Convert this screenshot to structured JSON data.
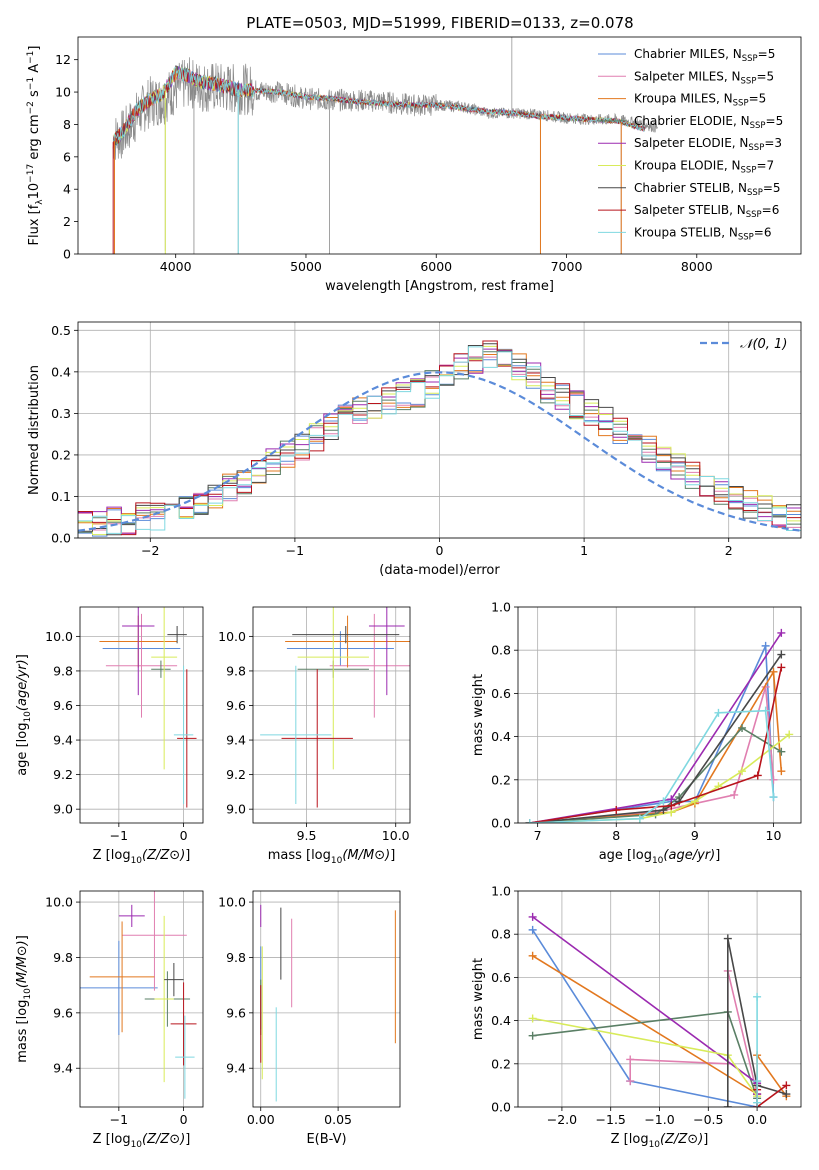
{
  "figure": {
    "title": "PLATE=0503, MJD=51999, FIBERID=0133, z=0.078"
  },
  "palette": {
    "Chabrier MILES": "#5b8bd9",
    "Salpeter MILES": "#e07fb0",
    "Kroupa MILES": "#e2781f",
    "Chabrier ELODIE": "#5a7f65",
    "Salpeter ELODIE": "#9b2ab0",
    "Kroupa ELODIE": "#d8eb5a",
    "Chabrier STELIB": "#484848",
    "Salpeter STELIB": "#b8141c",
    "Kroupa STELIB": "#7fd8e0",
    "observed": "#8a8a8a",
    "normal_curve": "#5b8bd9"
  },
  "chart_data": [
    {
      "id": "spectrum",
      "type": "line",
      "xlabel": "wavelength [Angstrom, rest frame]",
      "ylabel": "Flux [f_λ 10^-17 erg cm^-2 s^-1 A^-1]",
      "xlim": [
        3250,
        8800
      ],
      "ylim": [
        0,
        13.4
      ],
      "xticks": [
        4000,
        5000,
        6000,
        7000,
        8000
      ],
      "yticks": [
        0,
        2,
        4,
        6,
        8,
        10,
        12
      ],
      "grid": false,
      "legend_position": "right",
      "observed": {
        "name": "observed",
        "x": [
          3520,
          3600,
          3700,
          3800,
          3900,
          4000,
          4100,
          4200,
          4300,
          4400,
          4500,
          4600,
          4800,
          5000,
          5200,
          5400,
          5600,
          5800,
          6000,
          6200,
          6400,
          6600,
          6800,
          7000,
          7200,
          7400,
          7600,
          7700
        ],
        "y": [
          7.1,
          7.4,
          8.5,
          9.4,
          9.5,
          10.2,
          10.6,
          10.3,
          10.3,
          10.2,
          10.2,
          10.1,
          10.0,
          9.6,
          9.5,
          9.5,
          9.4,
          9.2,
          9.2,
          9.1,
          8.7,
          8.7,
          8.6,
          8.4,
          8.3,
          8.3,
          8.0,
          7.8
        ]
      },
      "model_spectrum": {
        "x": [
          3520,
          3600,
          3700,
          3800,
          3900,
          4000,
          4100,
          4200,
          4300,
          4400,
          4500,
          4600,
          4800,
          5000,
          5200,
          5400,
          5600,
          5800,
          6000,
          6200,
          6400,
          6600,
          6800,
          7000,
          7200,
          7400,
          7600
        ],
        "y": [
          6.9,
          7.6,
          8.9,
          9.5,
          9.9,
          11.2,
          11.0,
          10.6,
          10.5,
          10.3,
          10.1,
          10.1,
          10.0,
          9.7,
          9.6,
          9.4,
          9.3,
          9.2,
          9.2,
          9.0,
          8.8,
          8.7,
          8.5,
          8.4,
          8.3,
          8.2,
          7.7
        ]
      },
      "series": [
        {
          "name": "Chabrier MILES",
          "n_ssp": "5",
          "label_text": "Chabrier MILES, N",
          "label_sub": "SSP",
          "label_end": "=5"
        },
        {
          "name": "Salpeter MILES",
          "n_ssp": "5",
          "label_text": "Salpeter MILES, N",
          "label_sub": "SSP",
          "label_end": "=5"
        },
        {
          "name": "Kroupa MILES",
          "n_ssp": "5",
          "label_text": "Kroupa MILES, N",
          "label_sub": "SSP",
          "label_end": "=5"
        },
        {
          "name": "Chabrier ELODIE",
          "n_ssp": "5",
          "label_text": "Chabrier ELODIE, N",
          "label_sub": "SSP",
          "label_end": "=5"
        },
        {
          "name": "Salpeter ELODIE",
          "n_ssp": "3",
          "label_text": "Salpeter ELODIE, N",
          "label_sub": "SSP",
          "label_end": "=3"
        },
        {
          "name": "Kroupa ELODIE",
          "n_ssp": "7",
          "label_text": "Kroupa ELODIE, N",
          "label_sub": "SSP",
          "label_end": "=7"
        },
        {
          "name": "Chabrier STELIB",
          "n_ssp": "5",
          "label_text": "Chabrier STELIB, N",
          "label_sub": "SSP",
          "label_end": "=5"
        },
        {
          "name": "Salpeter STELIB",
          "n_ssp": "6",
          "label_text": "Salpeter STELIB, N",
          "label_sub": "SSP",
          "label_end": "=6"
        },
        {
          "name": "Kroupa STELIB",
          "n_ssp": "6",
          "label_text": "Kroupa STELIB, N",
          "label_sub": "SSP",
          "label_end": "=6"
        }
      ]
    },
    {
      "id": "residuals",
      "type": "line",
      "xlabel": "(data-model)/error",
      "ylabel": "Normed distribution",
      "xlim": [
        -2.5,
        2.5
      ],
      "ylim": [
        0,
        0.52
      ],
      "xticks": [
        -2,
        -1,
        0,
        1,
        2
      ],
      "yticks": [
        0.0,
        0.1,
        0.2,
        0.3,
        0.4,
        0.5
      ],
      "grid": true,
      "legend_position": "top-right",
      "legend_label": "𝒩(0, 1)",
      "bin_width": 0.1,
      "histogram_envelope": [
        0.03,
        0.03,
        0.04,
        0.04,
        0.05,
        0.05,
        0.06,
        0.07,
        0.09,
        0.1,
        0.12,
        0.14,
        0.16,
        0.18,
        0.2,
        0.22,
        0.24,
        0.27,
        0.29,
        0.31,
        0.32,
        0.33,
        0.34,
        0.35,
        0.37,
        0.39,
        0.41,
        0.43,
        0.44,
        0.43,
        0.41,
        0.39,
        0.36,
        0.34,
        0.32,
        0.3,
        0.28,
        0.26,
        0.24,
        0.21,
        0.19,
        0.17,
        0.15,
        0.13,
        0.11,
        0.09,
        0.08,
        0.07,
        0.06,
        0.05
      ]
    },
    {
      "id": "age_vs_Z",
      "type": "scatter",
      "xlabel": "Z [log10(Z/Z⊙)]",
      "ylabel": "age  [log10(age/yr)]",
      "xlim": [
        -1.6,
        0.3
      ],
      "ylim": [
        8.92,
        10.17
      ],
      "xticks": [
        -1,
        0
      ],
      "yticks": [
        9.0,
        9.2,
        9.4,
        9.6,
        9.8,
        10.0
      ],
      "grid": true,
      "points": [
        {
          "series": "Chabrier MILES",
          "x": -0.65,
          "xerr": 0.6,
          "y": 9.93,
          "yerr": 0.1
        },
        {
          "series": "Salpeter MILES",
          "x": -0.65,
          "xerr": 0.55,
          "y": 9.83,
          "yerr": 0.3
        },
        {
          "series": "Kroupa MILES",
          "x": -0.7,
          "xerr": 0.6,
          "y": 9.97,
          "yerr": 0.15
        },
        {
          "series": "Chabrier ELODIE",
          "x": -0.35,
          "xerr": 0.15,
          "y": 9.81,
          "yerr": 0.05
        },
        {
          "series": "Salpeter ELODIE",
          "x": -0.7,
          "xerr": 0.25,
          "y": 10.06,
          "yerr": 0.4
        },
        {
          "series": "Kroupa ELODIE",
          "x": -0.3,
          "xerr": 0.2,
          "y": 9.88,
          "yerr": 0.65
        },
        {
          "series": "Chabrier STELIB",
          "x": -0.1,
          "xerr": 0.15,
          "y": 10.01,
          "yerr": 0.05
        },
        {
          "series": "Salpeter STELIB",
          "x": 0.05,
          "xerr": 0.15,
          "y": 9.41,
          "yerr": 0.4
        },
        {
          "series": "Kroupa STELIB",
          "x": 0.0,
          "xerr": 0.15,
          "y": 9.43,
          "yerr": 0.4
        }
      ]
    },
    {
      "id": "age_vs_mass",
      "type": "scatter",
      "xlabel": "mass [log10(M/M⊙)]",
      "ylabel": "",
      "xlim": [
        9.2,
        10.08
      ],
      "ylim": [
        8.92,
        10.17
      ],
      "xticks": [
        9.5,
        10.0
      ],
      "yticks": [
        9.0,
        9.2,
        9.4,
        9.6,
        9.8,
        10.0
      ],
      "grid": true,
      "points": [
        {
          "series": "Chabrier MILES",
          "x": 9.69,
          "xerr": 0.3,
          "y": 9.93,
          "yerr": 0.1
        },
        {
          "series": "Salpeter MILES",
          "x": 9.88,
          "xerr": 0.25,
          "y": 9.83,
          "yerr": 0.3
        },
        {
          "series": "Kroupa MILES",
          "x": 9.73,
          "xerr": 0.35,
          "y": 9.97,
          "yerr": 0.15
        },
        {
          "series": "Chabrier ELODIE",
          "x": 9.65,
          "xerr": 0.2,
          "y": 9.81,
          "yerr": 0.05
        },
        {
          "series": "Salpeter ELODIE",
          "x": 9.95,
          "xerr": 0.1,
          "y": 10.06,
          "yerr": 0.4
        },
        {
          "series": "Kroupa ELODIE",
          "x": 9.65,
          "xerr": 0.2,
          "y": 9.88,
          "yerr": 0.65
        },
        {
          "series": "Chabrier STELIB",
          "x": 9.72,
          "xerr": 0.3,
          "y": 10.01,
          "yerr": 0.05
        },
        {
          "series": "Salpeter STELIB",
          "x": 9.56,
          "xerr": 0.2,
          "y": 9.41,
          "yerr": 0.4
        },
        {
          "series": "Kroupa STELIB",
          "x": 9.44,
          "xerr": 0.2,
          "y": 9.43,
          "yerr": 0.4
        }
      ]
    },
    {
      "id": "weight_vs_age",
      "type": "line",
      "xlabel": "age  [log10(age/yr)]",
      "ylabel": "mass weight",
      "xlim": [
        6.75,
        10.35
      ],
      "ylim": [
        0,
        1.0
      ],
      "xticks": [
        7,
        8,
        9,
        10
      ],
      "yticks": [
        0.0,
        0.2,
        0.4,
        0.6,
        0.8,
        1.0
      ],
      "grid": true,
      "series": [
        {
          "name": "Chabrier MILES",
          "x": [
            6.9,
            8.7,
            9.0,
            9.9,
            10.0
          ],
          "y": [
            0.0,
            0.1,
            0.1,
            0.82,
            0.12
          ]
        },
        {
          "name": "Salpeter MILES",
          "x": [
            6.9,
            8.5,
            9.5,
            9.9,
            10.0
          ],
          "y": [
            0.0,
            0.05,
            0.13,
            0.63,
            0.2
          ]
        },
        {
          "name": "Kroupa MILES",
          "x": [
            6.9,
            8.7,
            9.0,
            10.0,
            10.1
          ],
          "y": [
            0.0,
            0.05,
            0.09,
            0.7,
            0.24
          ]
        },
        {
          "name": "Chabrier ELODIE",
          "x": [
            6.9,
            8.5,
            8.8,
            9.6,
            10.1
          ],
          "y": [
            0.0,
            0.04,
            0.12,
            0.44,
            0.33
          ]
        },
        {
          "name": "Salpeter ELODIE",
          "x": [
            6.9,
            8.7,
            10.1
          ],
          "y": [
            0.0,
            0.11,
            0.88
          ]
        },
        {
          "name": "Kroupa ELODIE",
          "x": [
            6.9,
            8.3,
            8.7,
            9.0,
            9.3,
            9.6,
            10.2
          ],
          "y": [
            0.0,
            0.02,
            0.05,
            0.1,
            0.17,
            0.24,
            0.41
          ]
        },
        {
          "name": "Chabrier STELIB",
          "x": [
            6.9,
            8.6,
            8.8,
            10.1
          ],
          "y": [
            0.0,
            0.06,
            0.1,
            0.78
          ]
        },
        {
          "name": "Salpeter STELIB",
          "x": [
            6.9,
            8.0,
            8.7,
            9.8,
            10.1
          ],
          "y": [
            0.0,
            0.06,
            0.08,
            0.22,
            0.72
          ]
        },
        {
          "name": "Kroupa STELIB",
          "x": [
            6.9,
            8.3,
            8.6,
            9.3,
            9.9,
            10.0
          ],
          "y": [
            0.0,
            0.02,
            0.1,
            0.51,
            0.52,
            0.12
          ]
        }
      ]
    },
    {
      "id": "mass_vs_Z",
      "type": "scatter",
      "xlabel": "Z [log10(Z/Z⊙)]",
      "ylabel": "mass [log10(M/M⊙)]",
      "xlim": [
        -1.6,
        0.3
      ],
      "ylim": [
        9.26,
        10.04
      ],
      "xticks": [
        -1,
        0
      ],
      "yticks": [
        9.4,
        9.6,
        9.8,
        10.0
      ],
      "grid": true,
      "points": [
        {
          "series": "Chabrier MILES",
          "x": -1.0,
          "xerr": 0.6,
          "y": 9.69,
          "yerr": 0.17
        },
        {
          "series": "Salpeter MILES",
          "x": -0.45,
          "xerr": 0.5,
          "y": 9.88,
          "yerr": 0.2
        },
        {
          "series": "Kroupa MILES",
          "x": -0.95,
          "xerr": 0.5,
          "y": 9.73,
          "yerr": 0.2
        },
        {
          "series": "Chabrier ELODIE",
          "x": -0.25,
          "xerr": 0.35,
          "y": 9.65,
          "yerr": 0.1
        },
        {
          "series": "Salpeter ELODIE",
          "x": -0.8,
          "xerr": 0.2,
          "y": 9.95,
          "yerr": 0.04
        },
        {
          "series": "Kroupa ELODIE",
          "x": -0.3,
          "xerr": 0.15,
          "y": 9.65,
          "yerr": 0.3
        },
        {
          "series": "Chabrier STELIB",
          "x": -0.15,
          "xerr": 0.15,
          "y": 9.72,
          "yerr": 0.06
        },
        {
          "series": "Salpeter STELIB",
          "x": 0.0,
          "xerr": 0.2,
          "y": 9.56,
          "yerr": 0.15
        },
        {
          "series": "Kroupa STELIB",
          "x": 0.02,
          "xerr": 0.15,
          "y": 9.44,
          "yerr": 0.15
        }
      ]
    },
    {
      "id": "mass_vs_ebv",
      "type": "scatter",
      "xlabel": "E(B-V)",
      "ylabel": "",
      "xlim": [
        -0.005,
        0.09
      ],
      "ylim": [
        9.26,
        10.04
      ],
      "xticks": [
        0.0,
        0.05
      ],
      "yticks": [
        9.4,
        9.6,
        9.8,
        10.0
      ],
      "grid": true,
      "points": [
        {
          "series": "Chabrier MILES",
          "x": 0.0,
          "xerr": 0.0,
          "y": 9.69,
          "yerr": 0.15
        },
        {
          "series": "Salpeter MILES",
          "x": 0.02,
          "xerr": 0.0,
          "y": 9.78,
          "yerr": 0.16
        },
        {
          "series": "Kroupa MILES",
          "x": 0.087,
          "xerr": 0.0,
          "y": 9.73,
          "yerr": 0.24
        },
        {
          "series": "Chabrier ELODIE",
          "x": 0.0,
          "xerr": 0.0,
          "y": 9.62,
          "yerr": 0.1
        },
        {
          "series": "Salpeter ELODIE",
          "x": 0.0,
          "xerr": 0.0,
          "y": 9.95,
          "yerr": 0.04
        },
        {
          "series": "Kroupa ELODIE",
          "x": 0.001,
          "xerr": 0.0,
          "y": 9.6,
          "yerr": 0.24
        },
        {
          "series": "Chabrier STELIB",
          "x": 0.013,
          "xerr": 0.0,
          "y": 9.85,
          "yerr": 0.13
        },
        {
          "series": "Salpeter STELIB",
          "x": 0.0,
          "xerr": 0.0,
          "y": 9.56,
          "yerr": 0.14
        },
        {
          "series": "Kroupa STELIB",
          "x": 0.01,
          "xerr": 0.0,
          "y": 9.45,
          "yerr": 0.17
        }
      ]
    },
    {
      "id": "weight_vs_Z",
      "type": "line",
      "xlabel": "Z [log10(Z/Z⊙)]",
      "ylabel": "mass weight",
      "xlim": [
        -2.45,
        0.45
      ],
      "ylim": [
        0,
        1.0
      ],
      "xticks": [
        -2.0,
        -1.5,
        -1.0,
        -0.5,
        0.0
      ],
      "yticks": [
        0.0,
        0.2,
        0.4,
        0.6,
        0.8,
        1.0
      ],
      "grid": true,
      "series": [
        {
          "name": "Chabrier MILES",
          "x": [
            -2.3,
            -1.3,
            0.0,
            0.0
          ],
          "y": [
            0.82,
            0.12,
            0.0,
            0.06
          ]
        },
        {
          "name": "Salpeter MILES",
          "x": [
            -1.3,
            -1.3,
            -0.3,
            -0.3,
            0.0
          ],
          "y": [
            0.12,
            0.22,
            0.2,
            0.63,
            0.06
          ]
        },
        {
          "name": "Kroupa MILES",
          "x": [
            -2.3,
            0.0,
            0.0,
            0.3
          ],
          "y": [
            0.7,
            0.06,
            0.24,
            0.05
          ]
        },
        {
          "name": "Chabrier ELODIE",
          "x": [
            -2.3,
            -0.3,
            0.0,
            0.0
          ],
          "y": [
            0.33,
            0.44,
            0.04,
            0.12
          ]
        },
        {
          "name": "Salpeter ELODIE",
          "x": [
            -2.3,
            0.0,
            0.0
          ],
          "y": [
            0.88,
            0.11,
            0.06
          ]
        },
        {
          "name": "Kroupa ELODIE",
          "x": [
            -2.3,
            -0.3,
            0.0,
            0.0
          ],
          "y": [
            0.41,
            0.24,
            0.05,
            0.1
          ]
        },
        {
          "name": "Chabrier STELIB",
          "x": [
            -0.3,
            -0.3,
            0.0,
            0.3
          ],
          "y": [
            0.0,
            0.78,
            0.1,
            0.06
          ]
        },
        {
          "name": "Salpeter STELIB",
          "x": [
            0.0,
            0.0,
            0.3
          ],
          "y": [
            0.08,
            0.0,
            0.1
          ]
        },
        {
          "name": "Kroupa STELIB",
          "x": [
            0.0,
            0.0,
            0.0
          ],
          "y": [
            0.02,
            0.51,
            0.12
          ]
        }
      ]
    }
  ]
}
